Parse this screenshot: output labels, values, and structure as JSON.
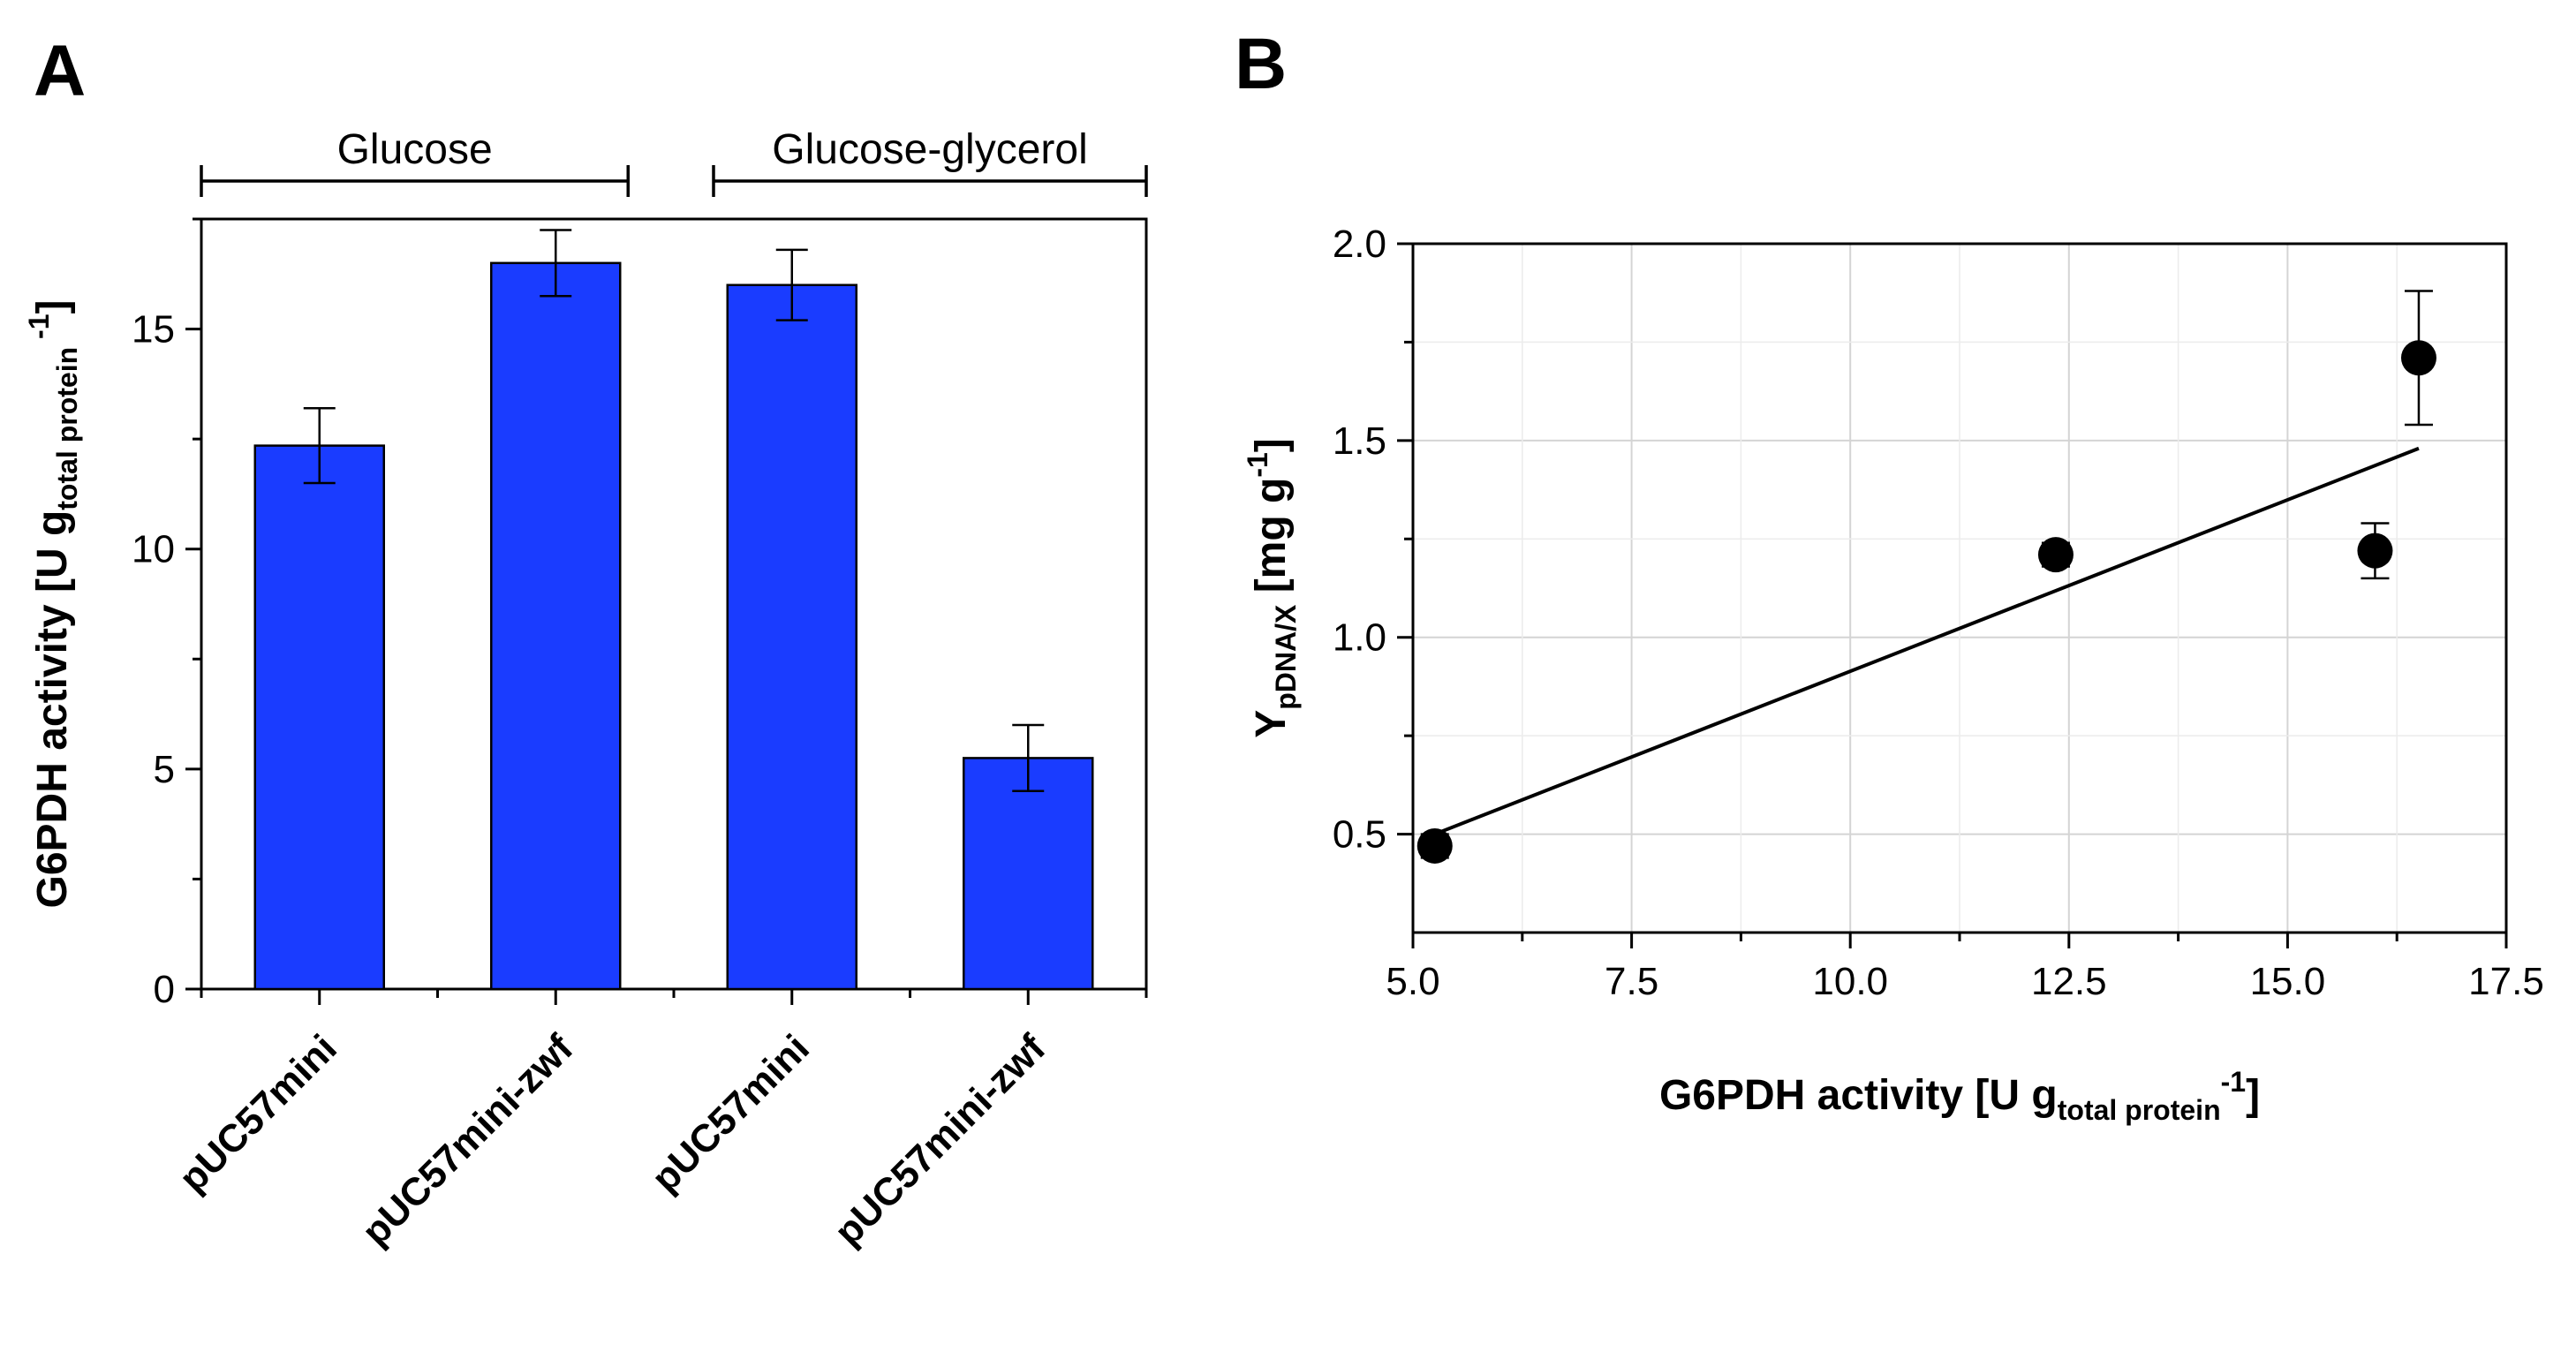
{
  "figure": {
    "panel_a_label": "A",
    "panel_b_label": "B"
  },
  "chart_data": [
    {
      "id": "panel-a",
      "type": "bar",
      "panel": "A",
      "title": "",
      "categories": [
        "pUC57mini",
        "pUC57mini-zwf",
        "pUC57mini",
        "pUC57mini-zwf"
      ],
      "values": [
        12.35,
        16.5,
        16.0,
        5.25
      ],
      "errors": [
        0.85,
        0.75,
        0.8,
        0.75
      ],
      "groups": [
        {
          "label": "Glucose",
          "categories": [
            0,
            1
          ]
        },
        {
          "label": "Glucose-glycerol",
          "categories": [
            2,
            3
          ]
        }
      ],
      "ylabel": {
        "main": "G6PDH activity [U g",
        "sub": "total protein",
        "sup": "-1",
        "close": "]"
      },
      "xlabel": "",
      "ylim": [
        0,
        17.5
      ],
      "yticks": [
        0,
        5,
        10,
        15
      ],
      "bar_color": "#1a3cff",
      "grid": false
    },
    {
      "id": "panel-b",
      "type": "scatter",
      "panel": "B",
      "title": "",
      "points": [
        {
          "x": 5.25,
          "y": 0.47,
          "err": 0.03
        },
        {
          "x": 12.35,
          "y": 1.21,
          "err": 0.03
        },
        {
          "x": 16.0,
          "y": 1.22,
          "err": 0.07
        },
        {
          "x": 16.5,
          "y": 1.71,
          "err": 0.17
        }
      ],
      "fit_line": {
        "x": [
          5.25,
          16.5
        ],
        "y": [
          0.5,
          1.48
        ]
      },
      "xlabel": {
        "main": "G6PDH activity [U g",
        "sub": "total protein",
        "sup": "-1",
        "close": "]"
      },
      "ylabel": {
        "main": "Y",
        "sub": "pDNA/X",
        "rest": " [mg g",
        "sup": "-1",
        "close": "]"
      },
      "xlim": [
        5.0,
        17.5
      ],
      "ylim": [
        0.25,
        2.0
      ],
      "xticks": [
        "5.0",
        "7.5",
        "10.0",
        "12.5",
        "15.0",
        "17.5"
      ],
      "yticks": [
        "0.5",
        "1.0",
        "1.5",
        "2.0"
      ],
      "grid": true,
      "marker_color": "#000000"
    }
  ]
}
